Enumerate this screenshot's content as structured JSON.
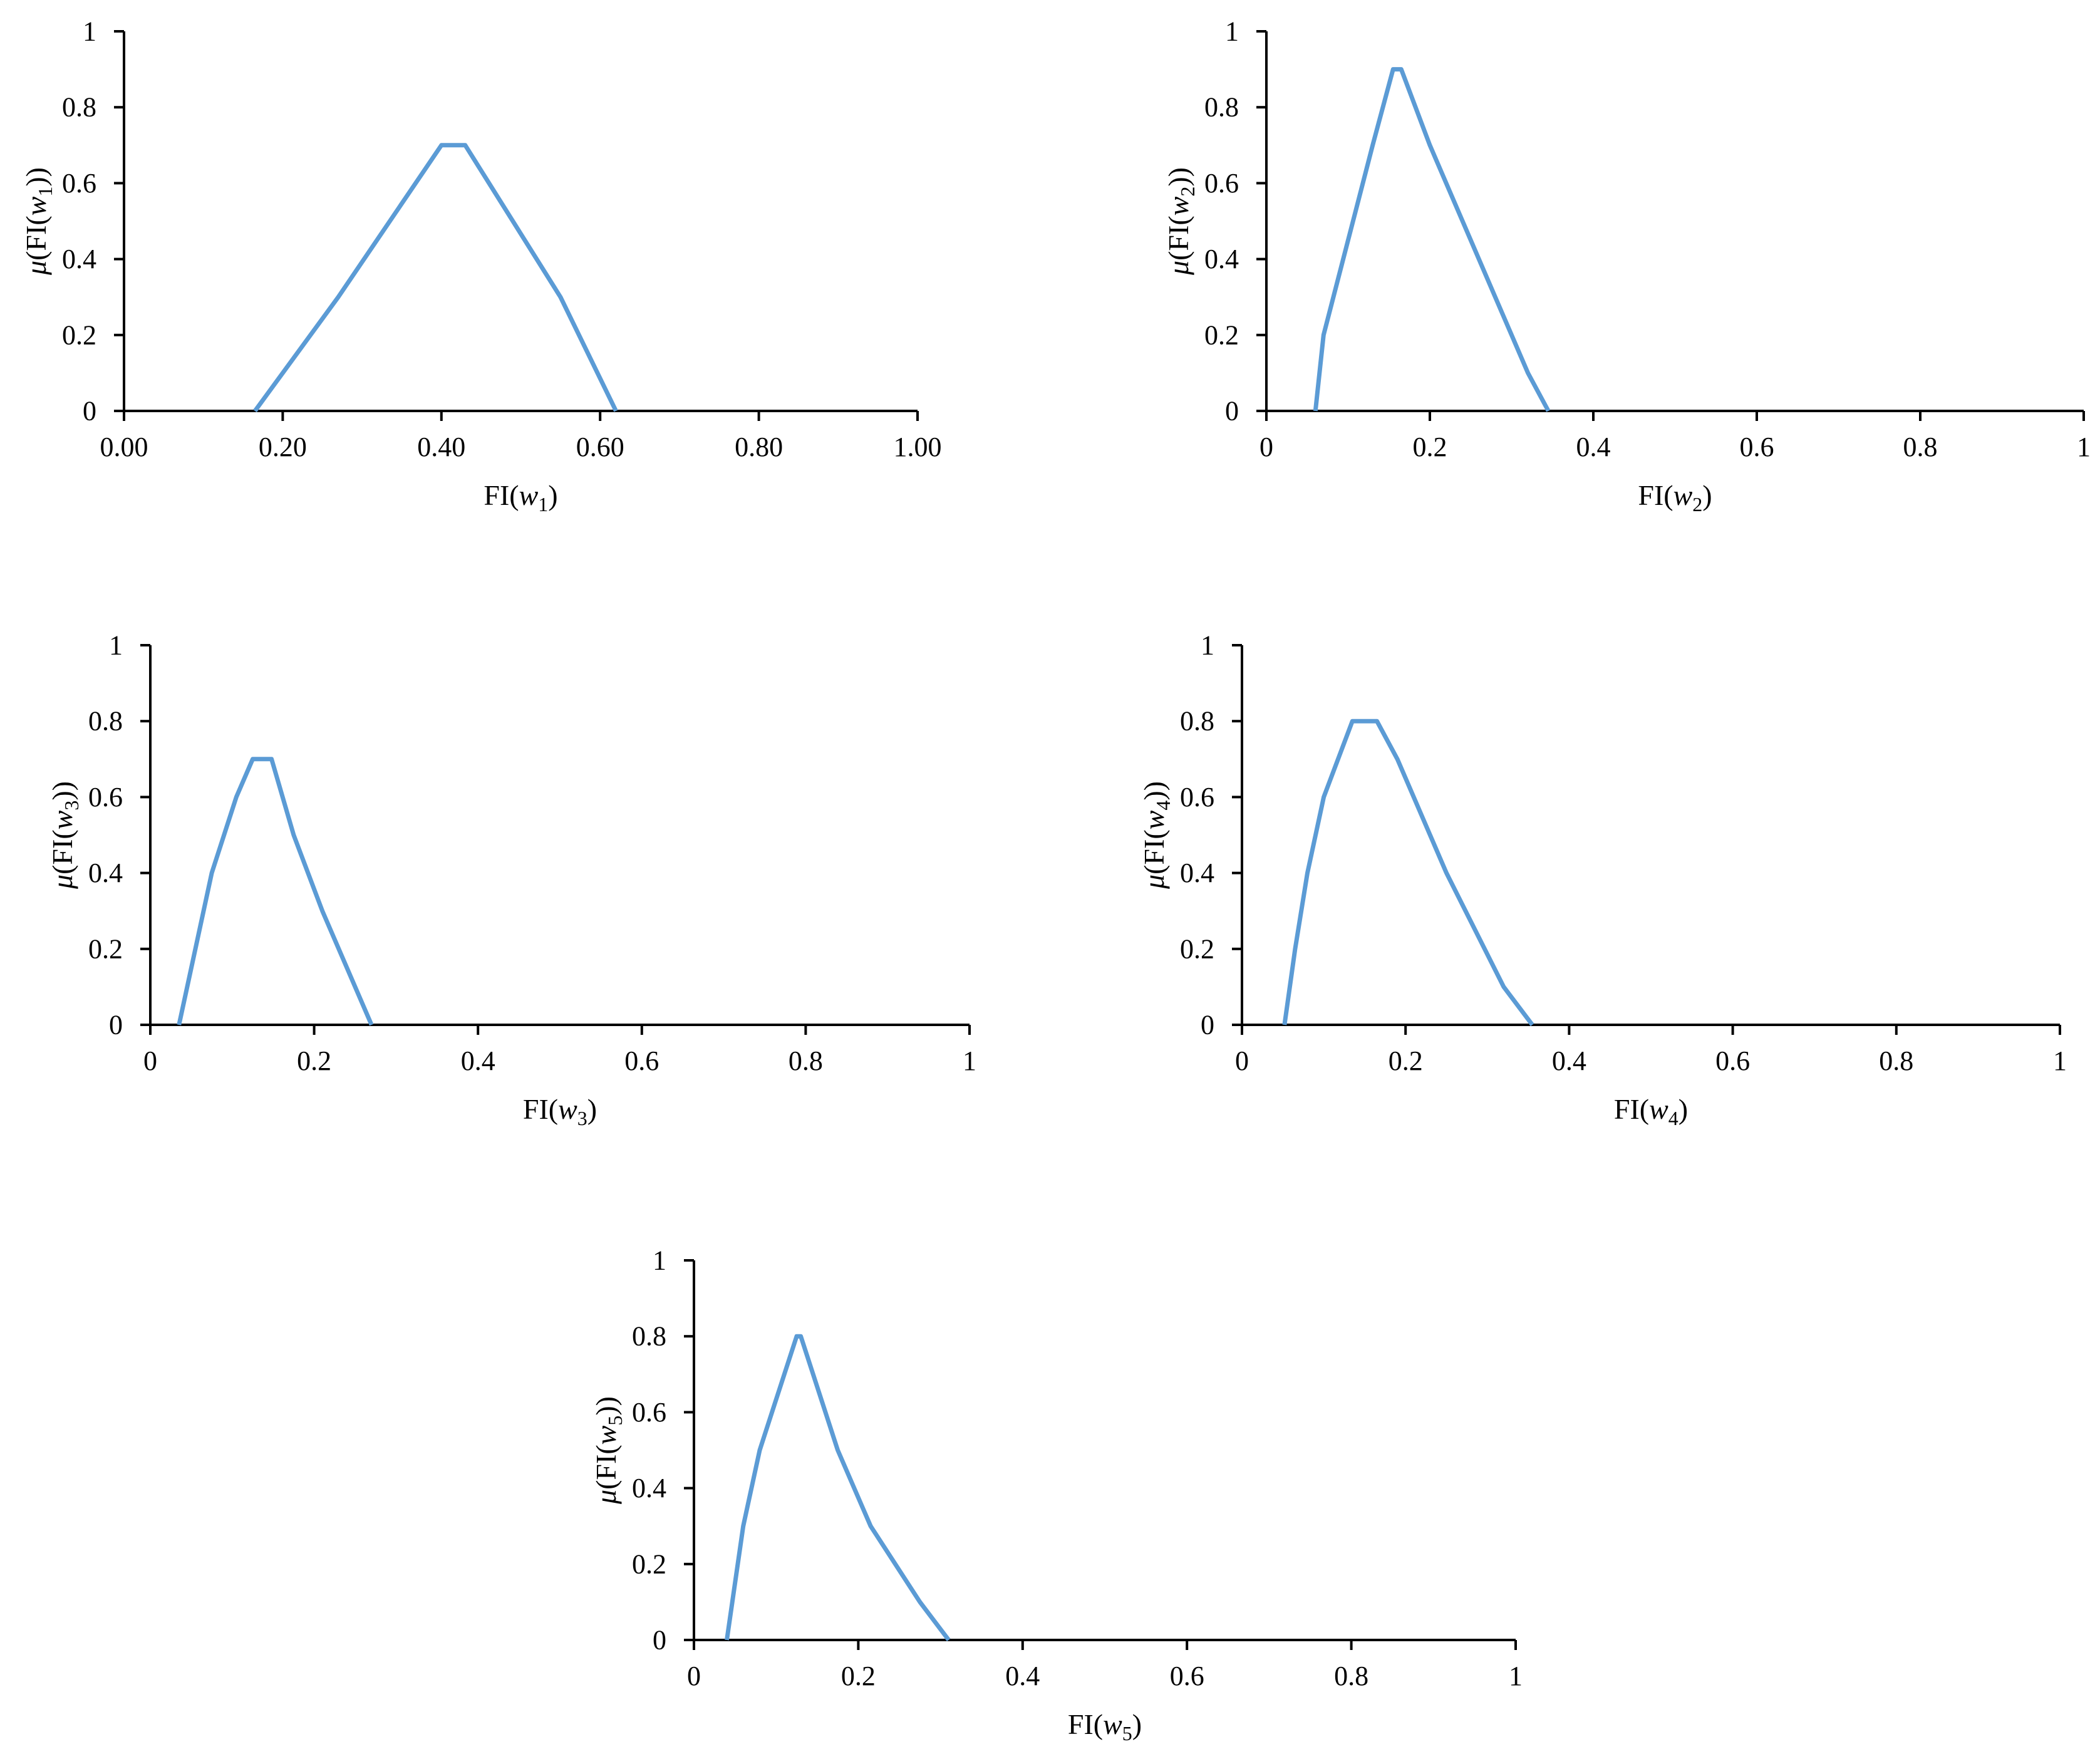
{
  "colors": {
    "series": "#5B9BD5",
    "axis": "#000000"
  },
  "chart_data": [
    {
      "type": "line",
      "title": "",
      "xlabel": {
        "prefix": "FI(",
        "var": "w",
        "sub": "1",
        "suffix": ")"
      },
      "ylabel": {
        "mu": "μ",
        "prefix": "(FI(",
        "var": "w",
        "sub": "1",
        "suffix": "))"
      },
      "xlim": [
        0,
        1
      ],
      "ylim": [
        0,
        1
      ],
      "xticks": [
        0,
        0.2,
        0.4,
        0.6,
        0.8,
        1.0
      ],
      "xtick_labels": [
        "0.00",
        "0.20",
        "0.40",
        "0.60",
        "0.80",
        "1.00"
      ],
      "yticks": [
        0,
        0.2,
        0.4,
        0.6,
        0.8,
        1
      ],
      "ytick_labels": [
        "0",
        "0.2",
        "0.4",
        "0.6",
        "0.8",
        "1"
      ],
      "series": [
        {
          "name": "μ(FI(w1))",
          "x": [
            0.165,
            0.27,
            0.4,
            0.43,
            0.46,
            0.55,
            0.62
          ],
          "y": [
            0,
            0.3,
            0.7,
            0.7,
            0.6,
            0.3,
            0
          ]
        }
      ]
    },
    {
      "type": "line",
      "title": "",
      "xlabel": {
        "prefix": "FI(",
        "var": "w",
        "sub": "2",
        "suffix": ")"
      },
      "ylabel": {
        "mu": "μ",
        "prefix": "(FI(",
        "var": "w",
        "sub": "2",
        "suffix": "))"
      },
      "xlim": [
        0,
        1
      ],
      "ylim": [
        0,
        1
      ],
      "xticks": [
        0,
        0.2,
        0.4,
        0.6,
        0.8,
        1
      ],
      "xtick_labels": [
        "0",
        "0.2",
        "0.4",
        "0.6",
        "0.8",
        "1"
      ],
      "yticks": [
        0,
        0.2,
        0.4,
        0.6,
        0.8,
        1
      ],
      "ytick_labels": [
        "0",
        "0.2",
        "0.4",
        "0.6",
        "0.8",
        "1"
      ],
      "series": [
        {
          "name": "μ(FI(w2))",
          "x": [
            0.06,
            0.07,
            0.1,
            0.13,
            0.155,
            0.165,
            0.2,
            0.24,
            0.28,
            0.32,
            0.345
          ],
          "y": [
            0,
            0.2,
            0.45,
            0.7,
            0.9,
            0.9,
            0.7,
            0.5,
            0.3,
            0.1,
            0
          ]
        }
      ]
    },
    {
      "type": "line",
      "title": "",
      "xlabel": {
        "prefix": "FI(",
        "var": "w",
        "sub": "3",
        "suffix": ")"
      },
      "ylabel": {
        "mu": "μ",
        "prefix": "(FI(",
        "var": "w",
        "sub": "3",
        "suffix": "))"
      },
      "xlim": [
        0,
        1
      ],
      "ylim": [
        0,
        1
      ],
      "xticks": [
        0,
        0.2,
        0.4,
        0.6,
        0.8,
        1
      ],
      "xtick_labels": [
        "0",
        "0.2",
        "0.4",
        "0.6",
        "0.8",
        "1"
      ],
      "yticks": [
        0,
        0.2,
        0.4,
        0.6,
        0.8,
        1
      ],
      "ytick_labels": [
        "0",
        "0.2",
        "0.4",
        "0.6",
        "0.8",
        "1"
      ],
      "series": [
        {
          "name": "μ(FI(w3))",
          "x": [
            0.035,
            0.045,
            0.075,
            0.105,
            0.125,
            0.148,
            0.175,
            0.21,
            0.27
          ],
          "y": [
            0,
            0.1,
            0.4,
            0.6,
            0.7,
            0.7,
            0.5,
            0.3,
            0
          ]
        }
      ]
    },
    {
      "type": "line",
      "title": "",
      "xlabel": {
        "prefix": "FI(",
        "var": "w",
        "sub": "4",
        "suffix": ")"
      },
      "ylabel": {
        "mu": "μ",
        "prefix": "(FI(",
        "var": "w",
        "sub": "4",
        "suffix": "))"
      },
      "xlim": [
        0,
        1
      ],
      "ylim": [
        0,
        1
      ],
      "xticks": [
        0,
        0.2,
        0.4,
        0.6,
        0.8,
        1
      ],
      "xtick_labels": [
        "0",
        "0.2",
        "0.4",
        "0.6",
        "0.8",
        "1"
      ],
      "yticks": [
        0,
        0.2,
        0.4,
        0.6,
        0.8,
        1
      ],
      "ytick_labels": [
        "0",
        "0.2",
        "0.4",
        "0.6",
        "0.8",
        "1"
      ],
      "series": [
        {
          "name": "μ(FI(w4))",
          "x": [
            0.052,
            0.065,
            0.08,
            0.1,
            0.135,
            0.165,
            0.19,
            0.25,
            0.32,
            0.355
          ],
          "y": [
            0,
            0.2,
            0.4,
            0.6,
            0.8,
            0.8,
            0.7,
            0.4,
            0.1,
            0
          ]
        }
      ]
    },
    {
      "type": "line",
      "title": "",
      "xlabel": {
        "prefix": "FI(",
        "var": "w",
        "sub": "5",
        "suffix": ")"
      },
      "ylabel": {
        "mu": "μ",
        "prefix": "(FI(",
        "var": "w",
        "sub": "5",
        "suffix": "))"
      },
      "xlim": [
        0,
        1
      ],
      "ylim": [
        0,
        1
      ],
      "xticks": [
        0,
        0.2,
        0.4,
        0.6,
        0.8,
        1
      ],
      "xtick_labels": [
        "0",
        "0.2",
        "0.4",
        "0.6",
        "0.8",
        "1"
      ],
      "yticks": [
        0,
        0.2,
        0.4,
        0.6,
        0.8,
        1
      ],
      "ytick_labels": [
        "0",
        "0.2",
        "0.4",
        "0.6",
        "0.8",
        "1"
      ],
      "series": [
        {
          "name": "μ(FI(w5))",
          "x": [
            0.04,
            0.06,
            0.08,
            0.095,
            0.11,
            0.125,
            0.13,
            0.175,
            0.215,
            0.275,
            0.31
          ],
          "y": [
            0,
            0.3,
            0.5,
            0.6,
            0.7,
            0.8,
            0.8,
            0.5,
            0.3,
            0.1,
            0
          ]
        }
      ]
    }
  ]
}
